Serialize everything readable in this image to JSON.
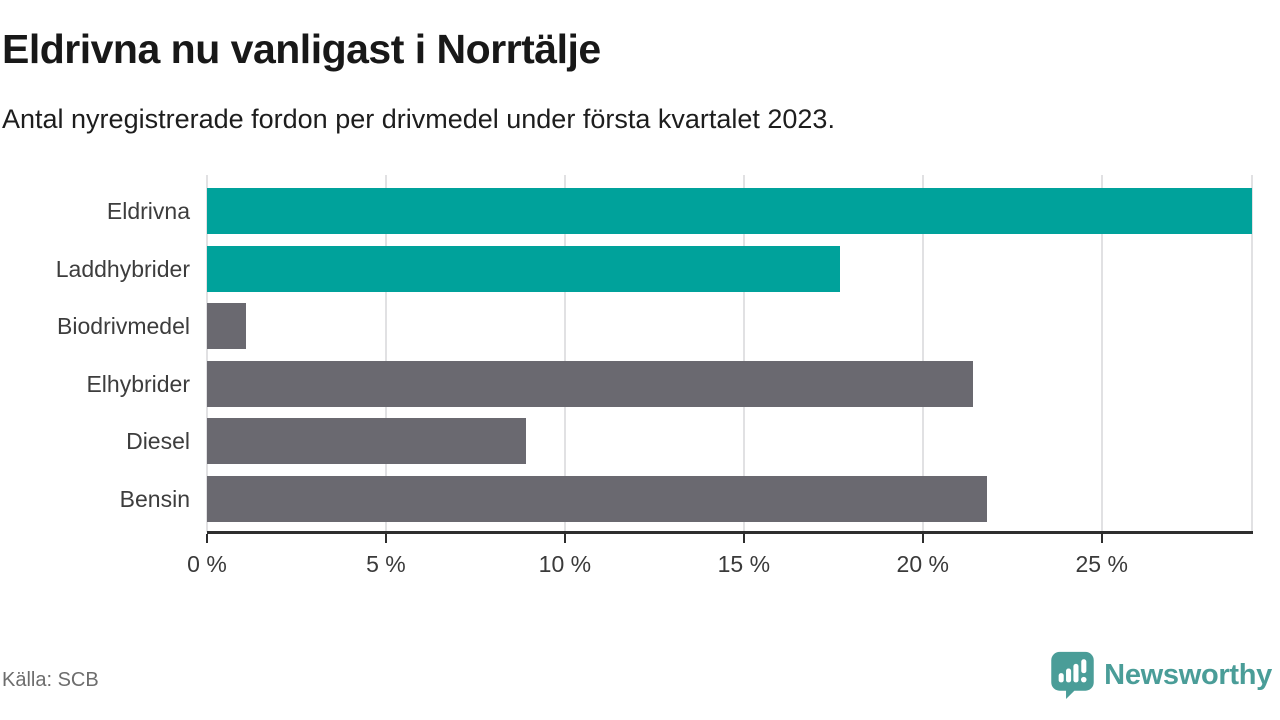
{
  "header": {
    "title": "Eldrivna nu vanligast i Norrtälje",
    "subtitle": "Antal nyregistrerade fordon per drivmedel under första kvartalet 2023."
  },
  "footer": {
    "source": "Källa: SCB",
    "brand_name": "Newsworthy",
    "brand_icon": "speech-bubble-bar-chart-icon"
  },
  "colors": {
    "highlight_bar": "#00a29b",
    "default_bar": "#6a6970",
    "grid": "#e1e1e3",
    "axis": "#2e2e2e",
    "brand_teal": "#4a9d98"
  },
  "chart_data": {
    "type": "bar",
    "orientation": "horizontal",
    "title": "Eldrivna nu vanligast i Norrtälje",
    "subtitle": "Antal nyregistrerade fordon per drivmedel under första kvartalet 2023.",
    "categories": [
      "Eldrivna",
      "Laddhybrider",
      "Biodrivmedel",
      "Elhybrider",
      "Diesel",
      "Bensin"
    ],
    "values": [
      29.2,
      17.7,
      1.1,
      21.4,
      8.9,
      21.8
    ],
    "unit": "%",
    "bar_colors": [
      "#00a29b",
      "#00a29b",
      "#6a6970",
      "#6a6970",
      "#6a6970",
      "#6a6970"
    ],
    "xlim": [
      0,
      29.2
    ],
    "grid": true,
    "legend": false,
    "ticks": [
      {
        "value": 0,
        "label": "0 %"
      },
      {
        "value": 5,
        "label": "5 %"
      },
      {
        "value": 10,
        "label": "10 %"
      },
      {
        "value": 15,
        "label": "15 %"
      },
      {
        "value": 20,
        "label": "20 %"
      },
      {
        "value": 25,
        "label": "25 %"
      }
    ]
  }
}
